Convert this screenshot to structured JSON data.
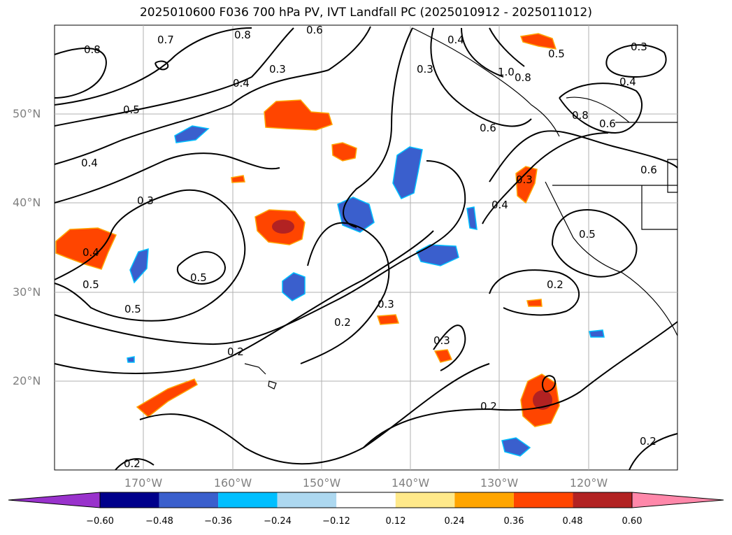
{
  "title": "2025010600 F036 700 hPa PV, IVT Landfall PC (2025010912 - 2025011012)",
  "lat_labels": [
    "50°N",
    "40°N",
    "30°N",
    "20°N"
  ],
  "lon_labels": [
    "170°W",
    "160°W",
    "150°W",
    "140°W",
    "130°W",
    "120°W"
  ],
  "contour_labels": [
    "0.7",
    "0.8",
    "0.8",
    "0.6",
    "0.4",
    "0.3",
    "0.5",
    "0.4",
    "0.3",
    "0.4",
    "0.5",
    "0.5",
    "0.5",
    "0.3",
    "0.2",
    "0.3",
    "0.2",
    "0.3",
    "0.2",
    "0.4",
    "0.6",
    "1.0",
    "0.8",
    "0.5",
    "0.8",
    "0.6",
    "0.3",
    "0.4",
    "0.3",
    "0.4",
    "0.6",
    "0.5",
    "0.2",
    "0.2",
    "0.2"
  ],
  "colorbar": {
    "ticks": [
      "−0.60",
      "−0.48",
      "−0.36",
      "−0.24",
      "−0.12",
      "0.12",
      "0.24",
      "0.36",
      "0.48",
      "0.60"
    ],
    "colors": [
      "#9932cc",
      "#00008b",
      "#3a5fcd",
      "#00bfff",
      "#add8f0",
      "#ffffff",
      "#ffe98a",
      "#ffa500",
      "#ff4500",
      "#b22222",
      "#ff88aa"
    ]
  }
}
